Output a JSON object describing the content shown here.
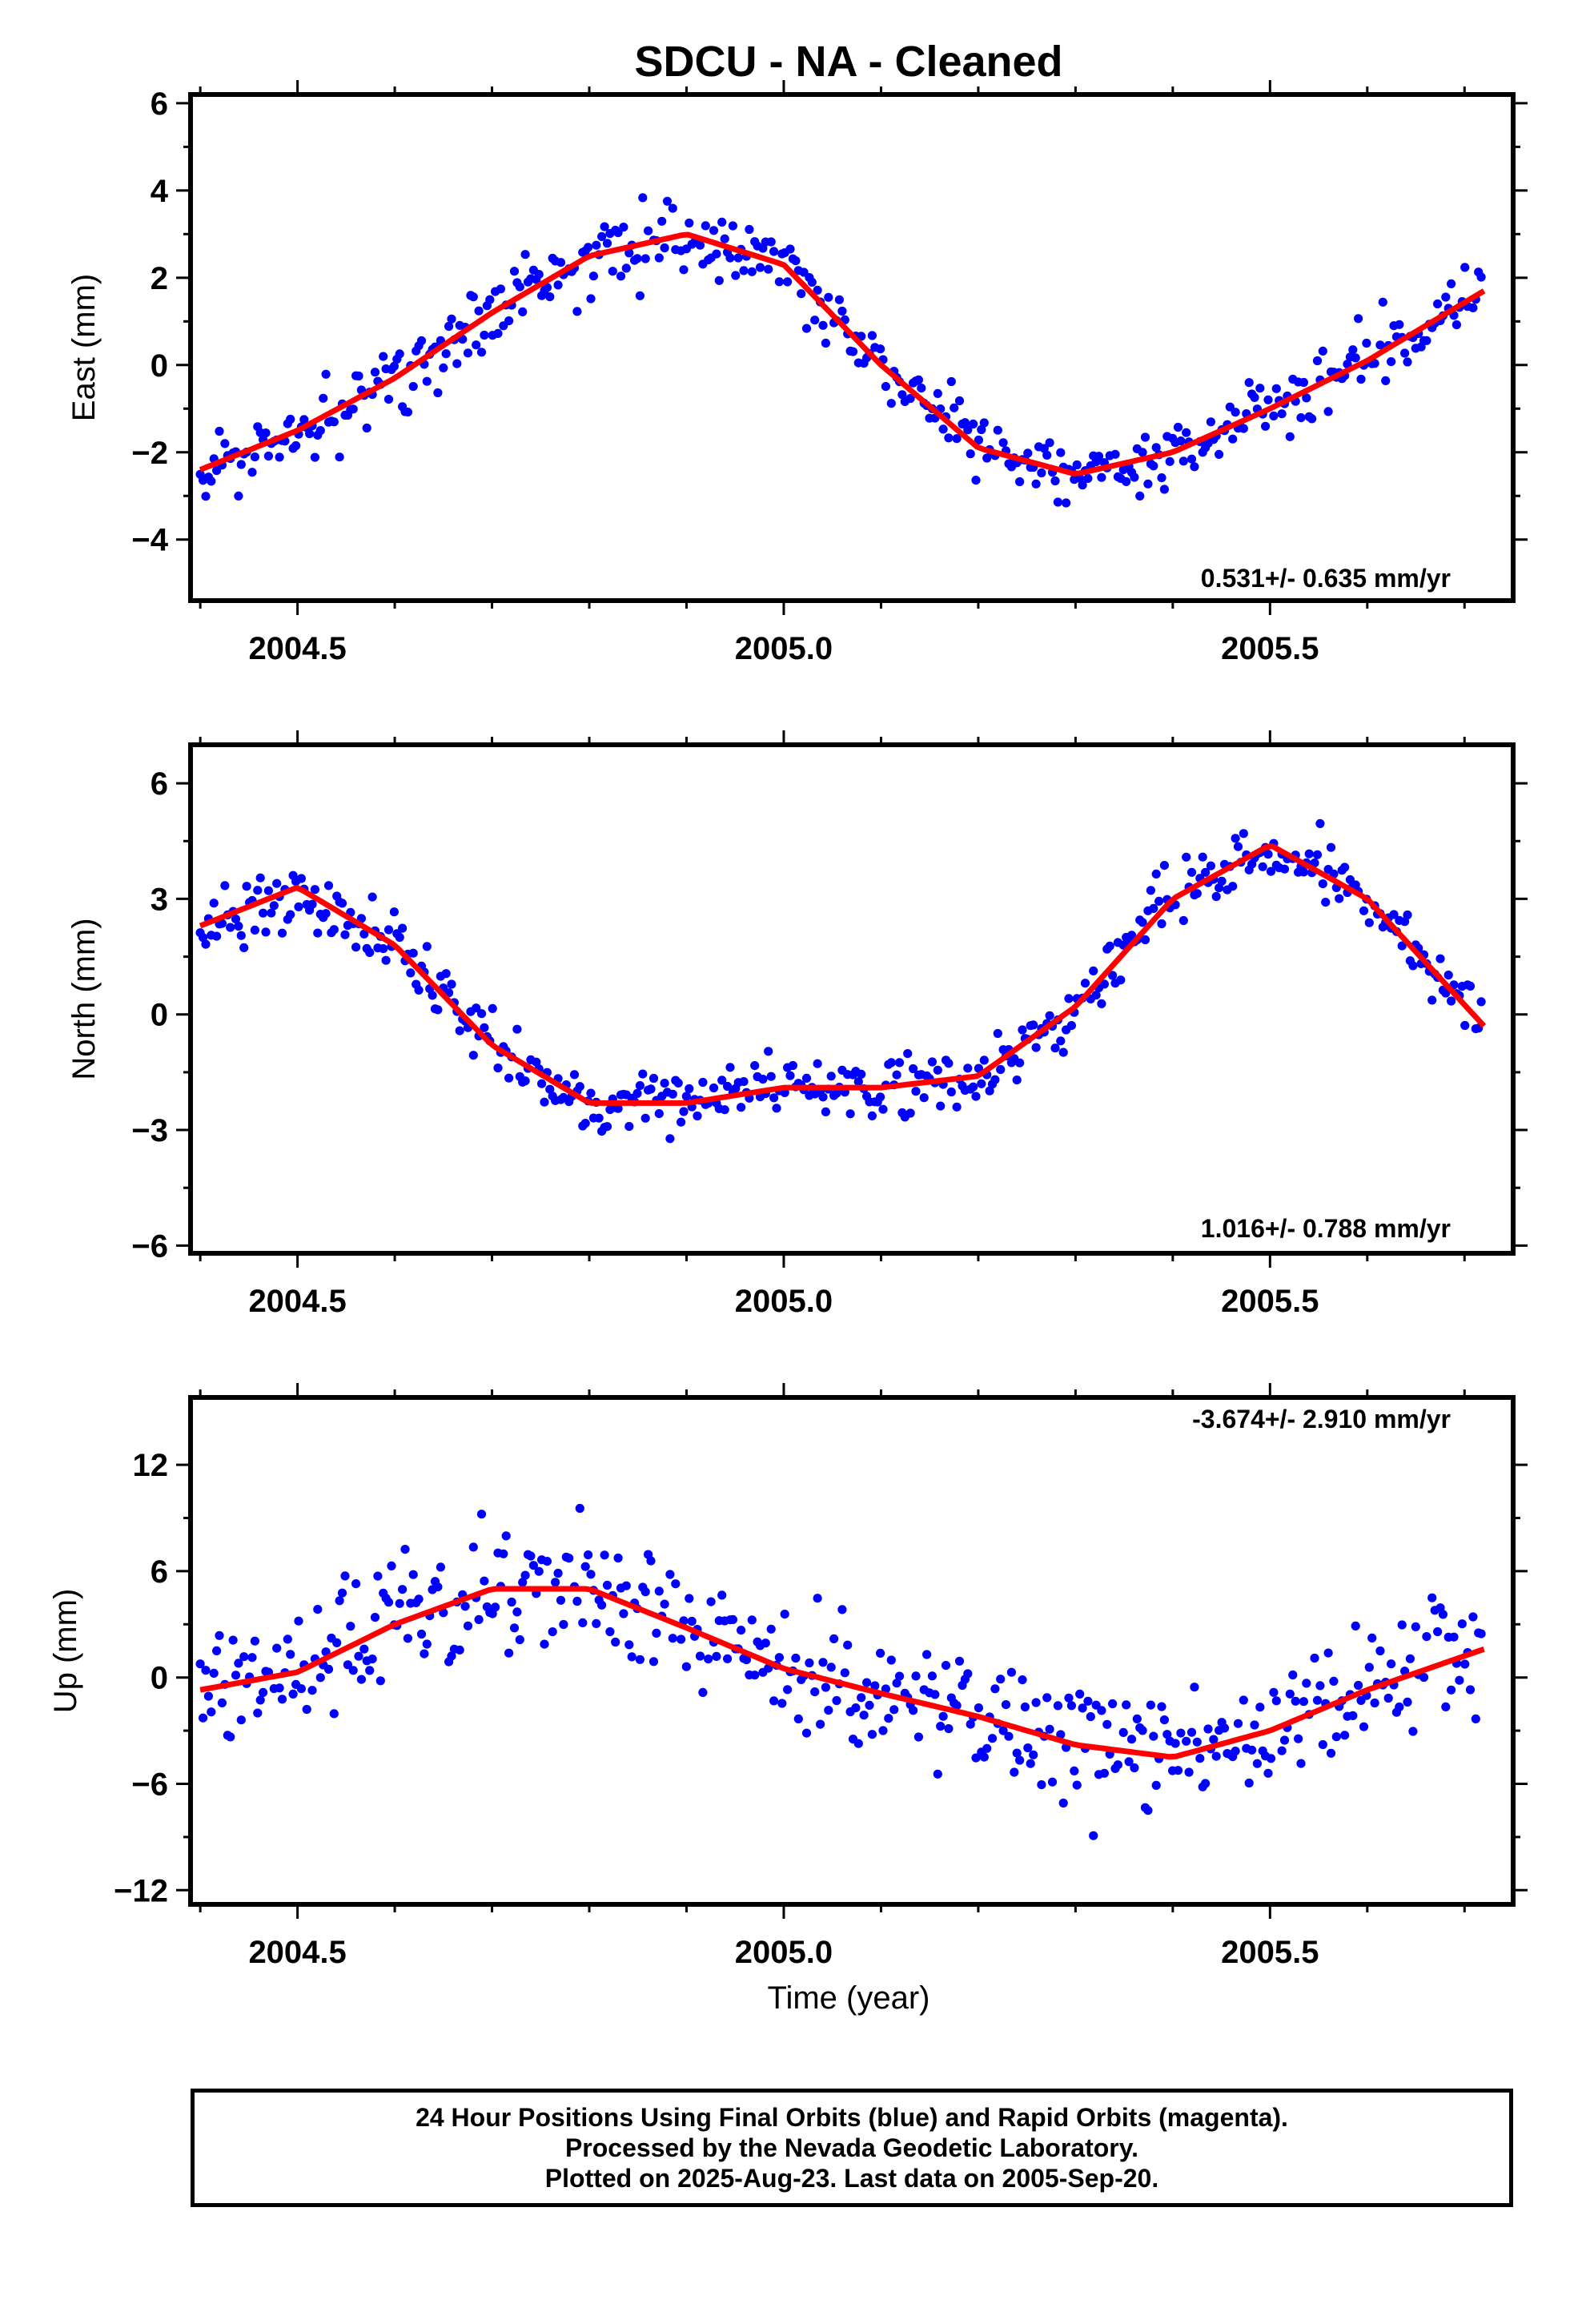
{
  "chart_data": {
    "title": "SDCU  - NA - Cleaned",
    "xlabel": "Time (year)",
    "xlim": [
      2004.39,
      2005.75
    ],
    "xticks": [
      2004.5,
      2005.0,
      2005.5
    ],
    "xtick_labels": [
      "2004.5",
      "2005.0",
      "2005.5"
    ],
    "panels": [
      {
        "type": "scatter",
        "ylabel": "East (mm)",
        "ylim": [
          -5.4,
          6.2
        ],
        "yticks": [
          6,
          4,
          2,
          0,
          -2,
          -4
        ],
        "ytick_labels": [
          "6",
          "4",
          "2",
          "0",
          "−2",
          "−4"
        ],
        "rate_text": "0.531+/- 0.635 mm/yr",
        "model": {
          "x": [
            2004.4,
            2004.5,
            2004.6,
            2004.7,
            2004.8,
            2004.9,
            2005.0,
            2005.1,
            2005.2,
            2005.3,
            2005.4,
            2005.5,
            2005.6,
            2005.72
          ],
          "y": [
            -2.4,
            -1.5,
            -0.3,
            1.2,
            2.5,
            3.0,
            2.3,
            0.0,
            -1.9,
            -2.5,
            -2.0,
            -1.0,
            0.1,
            1.7
          ]
        }
      },
      {
        "type": "scatter",
        "ylabel": "North (mm)",
        "ylim": [
          -6.2,
          7.0
        ],
        "yticks": [
          6,
          3,
          0,
          -3,
          -6
        ],
        "ytick_labels": [
          "6",
          "3",
          "0",
          "−3",
          "−6"
        ],
        "rate_text": "1.016+/- 0.788 mm/yr",
        "model": {
          "x": [
            2004.4,
            2004.5,
            2004.6,
            2004.7,
            2004.8,
            2004.9,
            2005.0,
            2005.1,
            2005.2,
            2005.3,
            2005.4,
            2005.5,
            2005.6,
            2005.72
          ],
          "y": [
            2.3,
            3.3,
            1.8,
            -0.8,
            -2.3,
            -2.3,
            -1.9,
            -1.9,
            -1.6,
            0.2,
            3.0,
            4.4,
            3.0,
            -0.3
          ]
        }
      },
      {
        "type": "scatter",
        "ylabel": "Up (mm)",
        "ylim": [
          -12.8,
          15.8
        ],
        "yticks": [
          12,
          6,
          0,
          -6,
          -12
        ],
        "ytick_labels": [
          "12",
          "6",
          "0",
          "−6",
          "−12"
        ],
        "rate_text": "-3.674+/- 2.910 mm/yr",
        "model": {
          "x": [
            2004.4,
            2004.5,
            2004.6,
            2004.7,
            2004.8,
            2004.9,
            2005.0,
            2005.1,
            2005.2,
            2005.3,
            2005.4,
            2005.5,
            2005.6,
            2005.72
          ],
          "y": [
            -0.7,
            0.3,
            3.0,
            5.0,
            5.0,
            2.8,
            0.5,
            -0.9,
            -2.2,
            -3.8,
            -4.5,
            -3.0,
            -0.7,
            1.6
          ]
        }
      }
    ],
    "series": [
      {
        "name": "Final Orbits",
        "color": "#0000ff",
        "marker": "dot"
      },
      {
        "name": "Model fit",
        "color": "#ff0000",
        "marker": "line"
      }
    ],
    "grid": false
  },
  "footer": {
    "line1": "24 Hour Positions Using Final Orbits (blue) and Rapid Orbits (magenta).",
    "line2": "Processed by the Nevada Geodetic Laboratory.",
    "line3": "Plotted on 2025-Aug-23. Last data on 2005-Sep-20."
  },
  "colors": {
    "points": "#0000ff",
    "model": "#ff0000"
  }
}
